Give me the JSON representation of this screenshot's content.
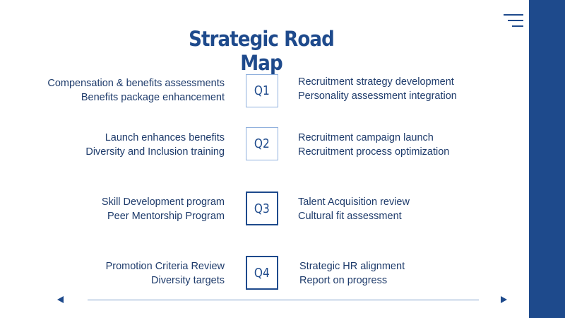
{
  "title": "Strategic Road Map",
  "colors": {
    "brand": "#1e4a8c",
    "text": "#1e3b6b",
    "box_border_light": "#8fb0dd"
  },
  "icons": {
    "menu": "hamburger-menu-icon",
    "prev": "triangle-left-icon",
    "next": "triangle-right-icon"
  },
  "quarters": [
    {
      "label": "Q1",
      "left": [
        "Compensation & benefits assessments",
        "Benefits package enhancement"
      ],
      "right": [
        "Recruitment strategy development",
        "Personality assessment integration"
      ]
    },
    {
      "label": "Q2",
      "left": [
        "Launch enhances benefits",
        "Diversity and Inclusion training"
      ],
      "right": [
        "Recruitment campaign launch",
        "Recruitment process optimization"
      ]
    },
    {
      "label": "Q3",
      "left": [
        "Skill Development program",
        "Peer Mentorship Program"
      ],
      "right": [
        "Talent Acquisition review",
        "Cultural fit assessment"
      ]
    },
    {
      "label": "Q4",
      "left": [
        "Promotion Criteria Review",
        "Diversity targets"
      ],
      "right": [
        "Strategic HR  alignment",
        "Report on progress"
      ]
    }
  ]
}
